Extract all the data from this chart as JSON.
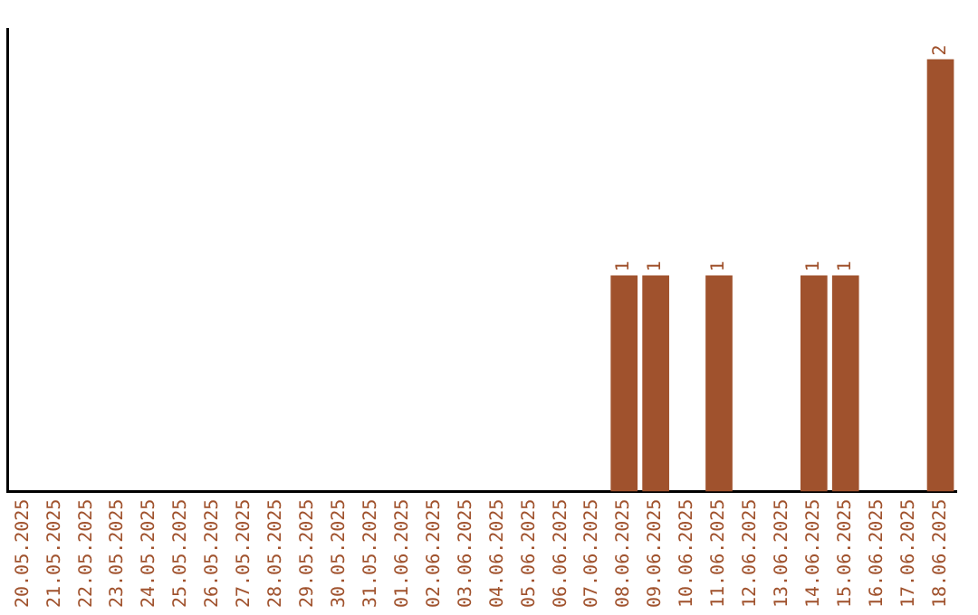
{
  "chart_data": {
    "type": "bar",
    "categories": [
      "20.05.2025",
      "21.05.2025",
      "22.05.2025",
      "23.05.2025",
      "24.05.2025",
      "25.05.2025",
      "26.05.2025",
      "27.05.2025",
      "28.05.2025",
      "29.05.2025",
      "30.05.2025",
      "31.05.2025",
      "01.06.2025",
      "02.06.2025",
      "03.06.2025",
      "04.06.2025",
      "05.06.2025",
      "06.06.2025",
      "07.06.2025",
      "08.06.2025",
      "09.06.2025",
      "10.06.2025",
      "11.06.2025",
      "12.06.2025",
      "13.06.2025",
      "14.06.2025",
      "15.06.2025",
      "16.06.2025",
      "17.06.2025",
      "18.06.2025"
    ],
    "values": [
      null,
      null,
      null,
      null,
      null,
      null,
      null,
      null,
      null,
      null,
      null,
      null,
      null,
      null,
      null,
      null,
      null,
      null,
      null,
      1,
      1,
      null,
      1,
      null,
      null,
      1,
      1,
      null,
      null,
      2
    ],
    "data_labels": true,
    "color": "#a0522d",
    "grid": false,
    "legend": false
  }
}
